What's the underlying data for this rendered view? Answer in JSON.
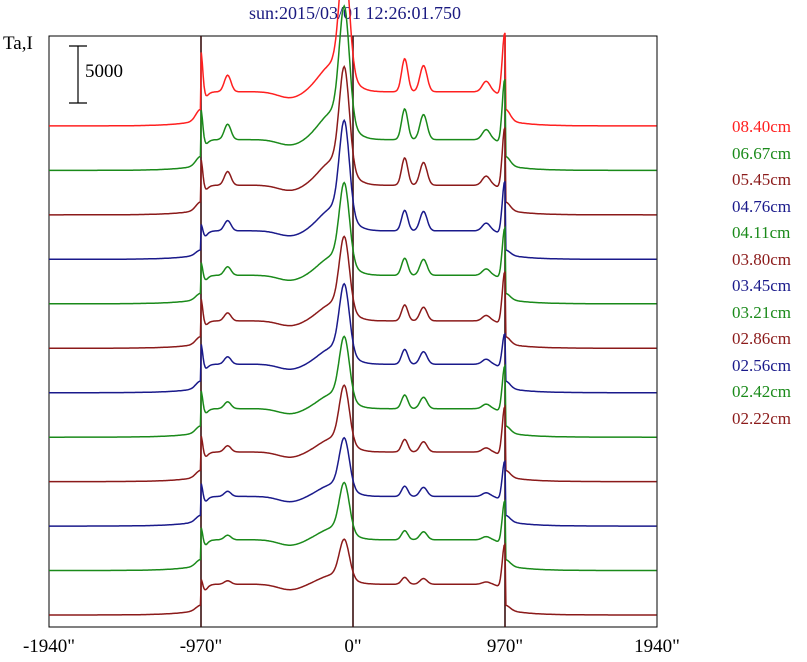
{
  "chart_data": {
    "type": "line",
    "title": "sun:2015/03/01 12:26:01.750",
    "ylabel": "Ta,I",
    "xlabel": "",
    "x_ticks": [
      "-1940\"",
      "-970\"",
      "0\"",
      "970\"",
      "1940\""
    ],
    "x_tick_values": [
      -1940,
      -970,
      0,
      970,
      1940
    ],
    "xlim": [
      -1940,
      1940
    ],
    "vertical_markers": [
      -970,
      0,
      970
    ],
    "scale_bar": {
      "value": 5000,
      "label": "5000"
    },
    "series_offset": 3900,
    "series": [
      {
        "name": "08.40cm",
        "color": "#ff2020",
        "baseline": 42900,
        "limb": 6200,
        "plateau": 3000,
        "center": 9900,
        "right_peak": 7400,
        "bump1": 2900,
        "bump2": 2300
      },
      {
        "name": "06.67cm",
        "color": "#1a8a1a",
        "baseline": 39000,
        "limb": 5000,
        "plateau": 2700,
        "center": 9800,
        "right_peak": 7300,
        "bump1": 2700,
        "bump2": 2200
      },
      {
        "name": "05.45cm",
        "color": "#8b1a1a",
        "baseline": 35100,
        "limb": 4500,
        "plateau": 2600,
        "center": 8700,
        "right_peak": 7000,
        "bump1": 2400,
        "bump2": 2000
      },
      {
        "name": "04.76cm",
        "color": "#1a1a8b",
        "baseline": 31200,
        "limb": 2600,
        "plateau": 2500,
        "center": 8100,
        "right_peak": 6200,
        "bump1": 1800,
        "bump2": 1700
      },
      {
        "name": "04.11cm",
        "color": "#1a8a1a",
        "baseline": 27300,
        "limb": 3200,
        "plateau": 2500,
        "center": 6800,
        "right_peak": 6000,
        "bump1": 1500,
        "bump2": 1400
      },
      {
        "name": "03.80cm",
        "color": "#8b1a1a",
        "baseline": 23400,
        "limb": 4000,
        "plateau": 2400,
        "center": 6200,
        "right_peak": 6100,
        "bump1": 1400,
        "bump2": 1200
      },
      {
        "name": "03.45cm",
        "color": "#1a1a8b",
        "baseline": 19500,
        "limb": 3900,
        "plateau": 2500,
        "center": 5900,
        "right_peak": 4500,
        "bump1": 1300,
        "bump2": 1100
      },
      {
        "name": "03.21cm",
        "color": "#1a8a1a",
        "baseline": 15600,
        "limb": 3700,
        "plateau": 2500,
        "center": 5300,
        "right_peak": 5600,
        "bump1": 1200,
        "bump2": 1000
      },
      {
        "name": "02.86cm",
        "color": "#8b1a1a",
        "baseline": 11700,
        "limb": 3600,
        "plateau": 2600,
        "center": 4900,
        "right_peak": 5900,
        "bump1": 1100,
        "bump2": 900
      },
      {
        "name": "02.56cm",
        "color": "#1a1a8b",
        "baseline": 7800,
        "limb": 3300,
        "plateau": 2600,
        "center": 4300,
        "right_peak": 5000,
        "bump1": 900,
        "bump2": 800
      },
      {
        "name": "02.42cm",
        "color": "#1a8a1a",
        "baseline": 3900,
        "limb": 3300,
        "plateau": 2700,
        "center": 4200,
        "right_peak": 5400,
        "bump1": 800,
        "bump2": 700
      },
      {
        "name": "02.22cm",
        "color": "#8b1a1a",
        "baseline": 0,
        "limb": 2600,
        "plateau": 2700,
        "center": 3300,
        "right_peak": 5500,
        "bump1": 600,
        "bump2": 500
      }
    ]
  }
}
